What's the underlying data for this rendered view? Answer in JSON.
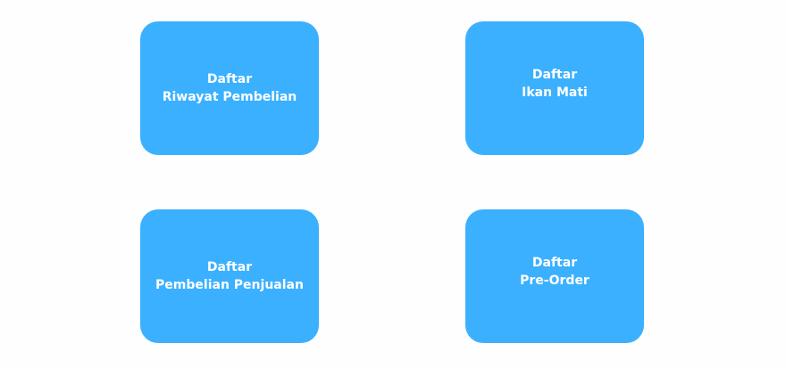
{
  "theme": {
    "card_color": "#3bb0ff",
    "text_color": "#ffffff",
    "background": "#fefefe"
  },
  "menu": {
    "cards": [
      {
        "line1": "Daftar",
        "line2": "Riwayat Pembelian"
      },
      {
        "line1": "Daftar",
        "line2": "Ikan Mati"
      },
      {
        "line1": "Daftar",
        "line2": "Pembelian Penjualan"
      },
      {
        "line1": "Daftar",
        "line2": "Pre-Order"
      }
    ]
  }
}
